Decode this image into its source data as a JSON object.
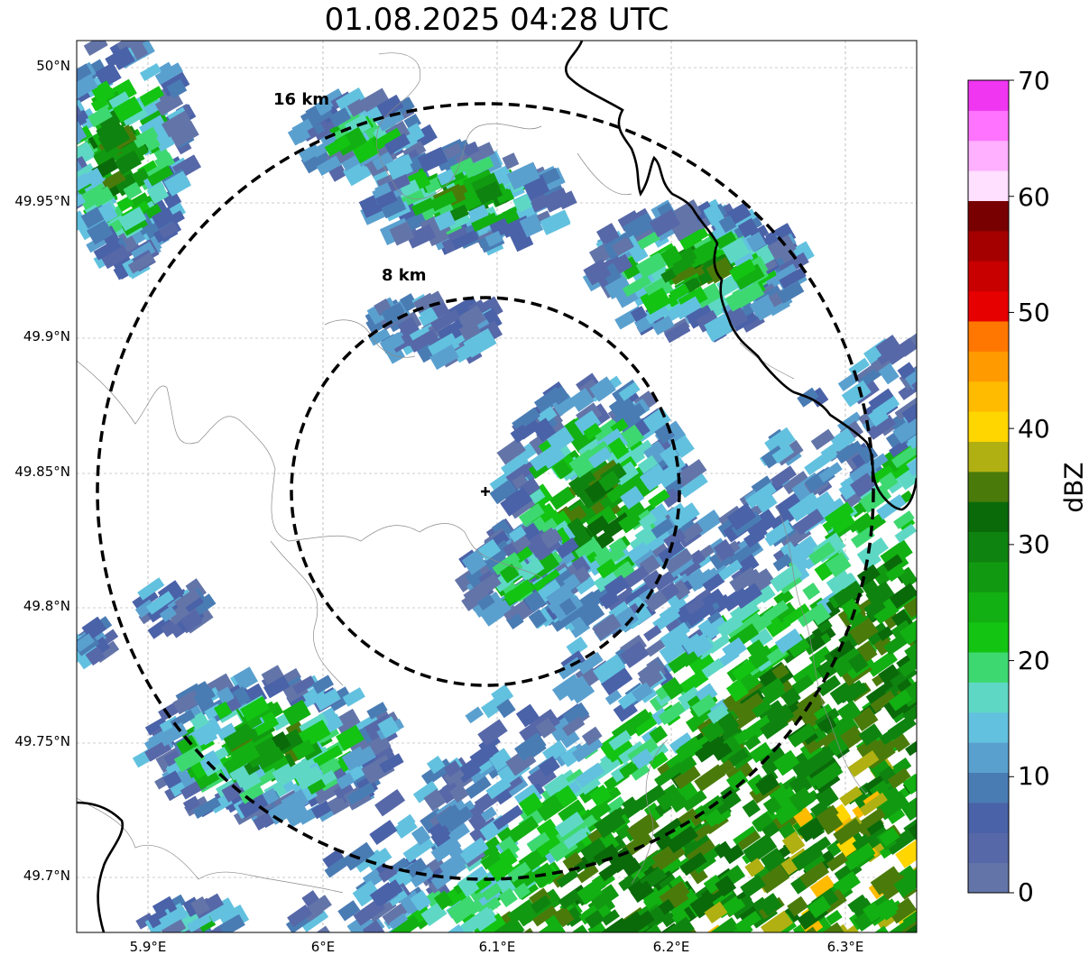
{
  "title": "01.08.2025 04:28 UTC",
  "lat_ticks": [
    "50°N",
    "49.95°N",
    "49.9°N",
    "49.85°N",
    "49.8°N",
    "49.75°N",
    "49.7°N"
  ],
  "lon_ticks": [
    "5.9°E",
    "6°E",
    "6.1°E",
    "6.2°E",
    "6.3°E"
  ],
  "range_rings": [
    {
      "label": "16 km"
    },
    {
      "label": "8 km"
    }
  ],
  "colorbar": {
    "unit": "dBZ",
    "ticks": [
      "0",
      "10",
      "20",
      "30",
      "40",
      "50",
      "60",
      "70"
    ],
    "colors": [
      "#6375a8",
      "#5768a8",
      "#4a62a8",
      "#4a7cb4",
      "#5aa0cf",
      "#62c1df",
      "#5ed8c5",
      "#3ed870",
      "#13c413",
      "#12b012",
      "#119a11",
      "#0f830f",
      "#0a6a0a",
      "#4a7b0a",
      "#b0b012",
      "#ffd600",
      "#ffbb00",
      "#ff9a00",
      "#ff7700",
      "#e60000",
      "#c80000",
      "#a50000",
      "#780000",
      "#ffe0ff",
      "#ffb0ff",
      "#ff73ff",
      "#f036f0"
    ]
  },
  "radar_site": "radar-center-marker"
}
